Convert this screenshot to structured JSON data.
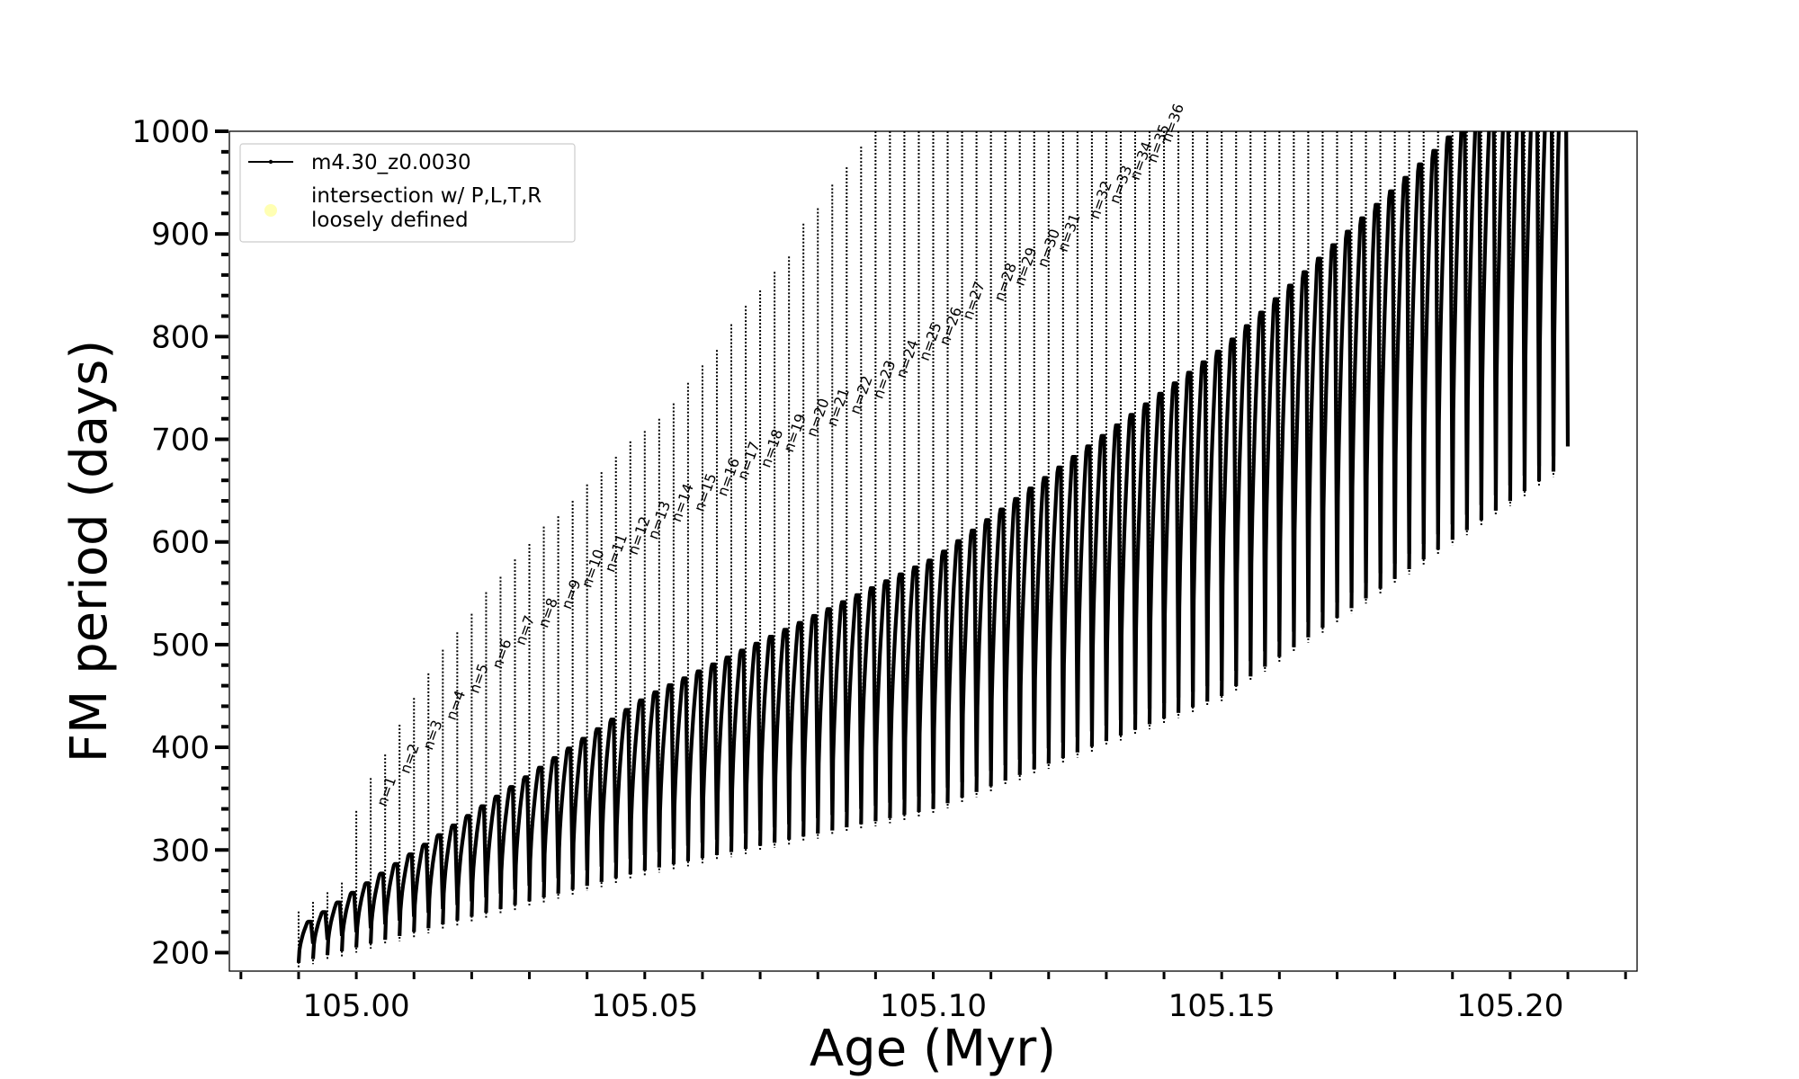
{
  "chart_data": {
    "type": "line",
    "xlabel": "Age (Myr)",
    "ylabel": "FM period (days)",
    "xlim": [
      104.978,
      105.222
    ],
    "ylim": [
      182,
      1000
    ],
    "xticks": [
      "105.00",
      "105.05",
      "105.10",
      "105.15",
      "105.20"
    ],
    "xtick_values": [
      105.0,
      105.05,
      105.1,
      105.15,
      105.2
    ],
    "yticks": [
      "200",
      "300",
      "400",
      "500",
      "600",
      "700",
      "800",
      "900",
      "1000"
    ],
    "ytick_values": [
      200,
      300,
      400,
      500,
      600,
      700,
      800,
      900,
      1000
    ],
    "grid": false,
    "legend_position": "upper left",
    "colors": {
      "series": "#000000",
      "intersection": "#ffff99"
    },
    "series": [
      {
        "name": "m4.30_z0.0030",
        "marker": "dot",
        "pulse_count": 88,
        "age_start": 104.99,
        "age_end": 105.21,
        "envelope": {
          "upper_mean_period": {
            "x": [
              104.99,
              105.05,
              105.1,
              105.15,
              105.19
            ],
            "y": [
              225,
              450,
              585,
              790,
              1000
            ]
          },
          "lower_min_period": {
            "x": [
              104.99,
              105.05,
              105.1,
              105.15,
              105.2
            ],
            "y": [
              190,
              280,
              340,
              450,
              640
            ]
          }
        },
        "spike_peaks": {
          "labels": [
            "n=1",
            "n=2",
            "n=3",
            "n=4",
            "n=5",
            "n=6",
            "n=7",
            "n=8",
            "n=9",
            "n=10",
            "n=11",
            "n=12",
            "n=13",
            "n=14",
            "n=15",
            "n=16",
            "n=17",
            "n=18",
            "n=19",
            "n=20",
            "n=21",
            "n=22",
            "n=23",
            "n=24",
            "n=25",
            "n=26",
            "n=27",
            "n=28",
            "n=29",
            "n=30",
            "n=31",
            "n=32",
            "n=33",
            "n=34",
            "n=35",
            "n=36"
          ],
          "x": [
            105.0045,
            105.0085,
            105.0125,
            105.0165,
            105.0205,
            105.0245,
            105.0285,
            105.0325,
            105.0365,
            105.04,
            105.044,
            105.048,
            105.0515,
            105.0555,
            105.0595,
            105.0635,
            105.067,
            105.071,
            105.075,
            105.079,
            105.0825,
            105.0865,
            105.0905,
            105.0945,
            105.0985,
            105.102,
            105.106,
            105.1115,
            105.115,
            105.119,
            105.1225,
            105.128,
            105.1315,
            105.135,
            105.138,
            105.1405
          ],
          "y": [
            338,
            370,
            393,
            422,
            448,
            472,
            495,
            512,
            530,
            551,
            566,
            583,
            598,
            615,
            625,
            640,
            656,
            668,
            683,
            698,
            708,
            720,
            735,
            755,
            772,
            787,
            812,
            830,
            845,
            863,
            878,
            910,
            925,
            948,
            965,
            985
          ]
        }
      },
      {
        "name": "intersection w/ P,L,T,R\nloosely defined",
        "marker": "circle",
        "points": []
      }
    ]
  }
}
